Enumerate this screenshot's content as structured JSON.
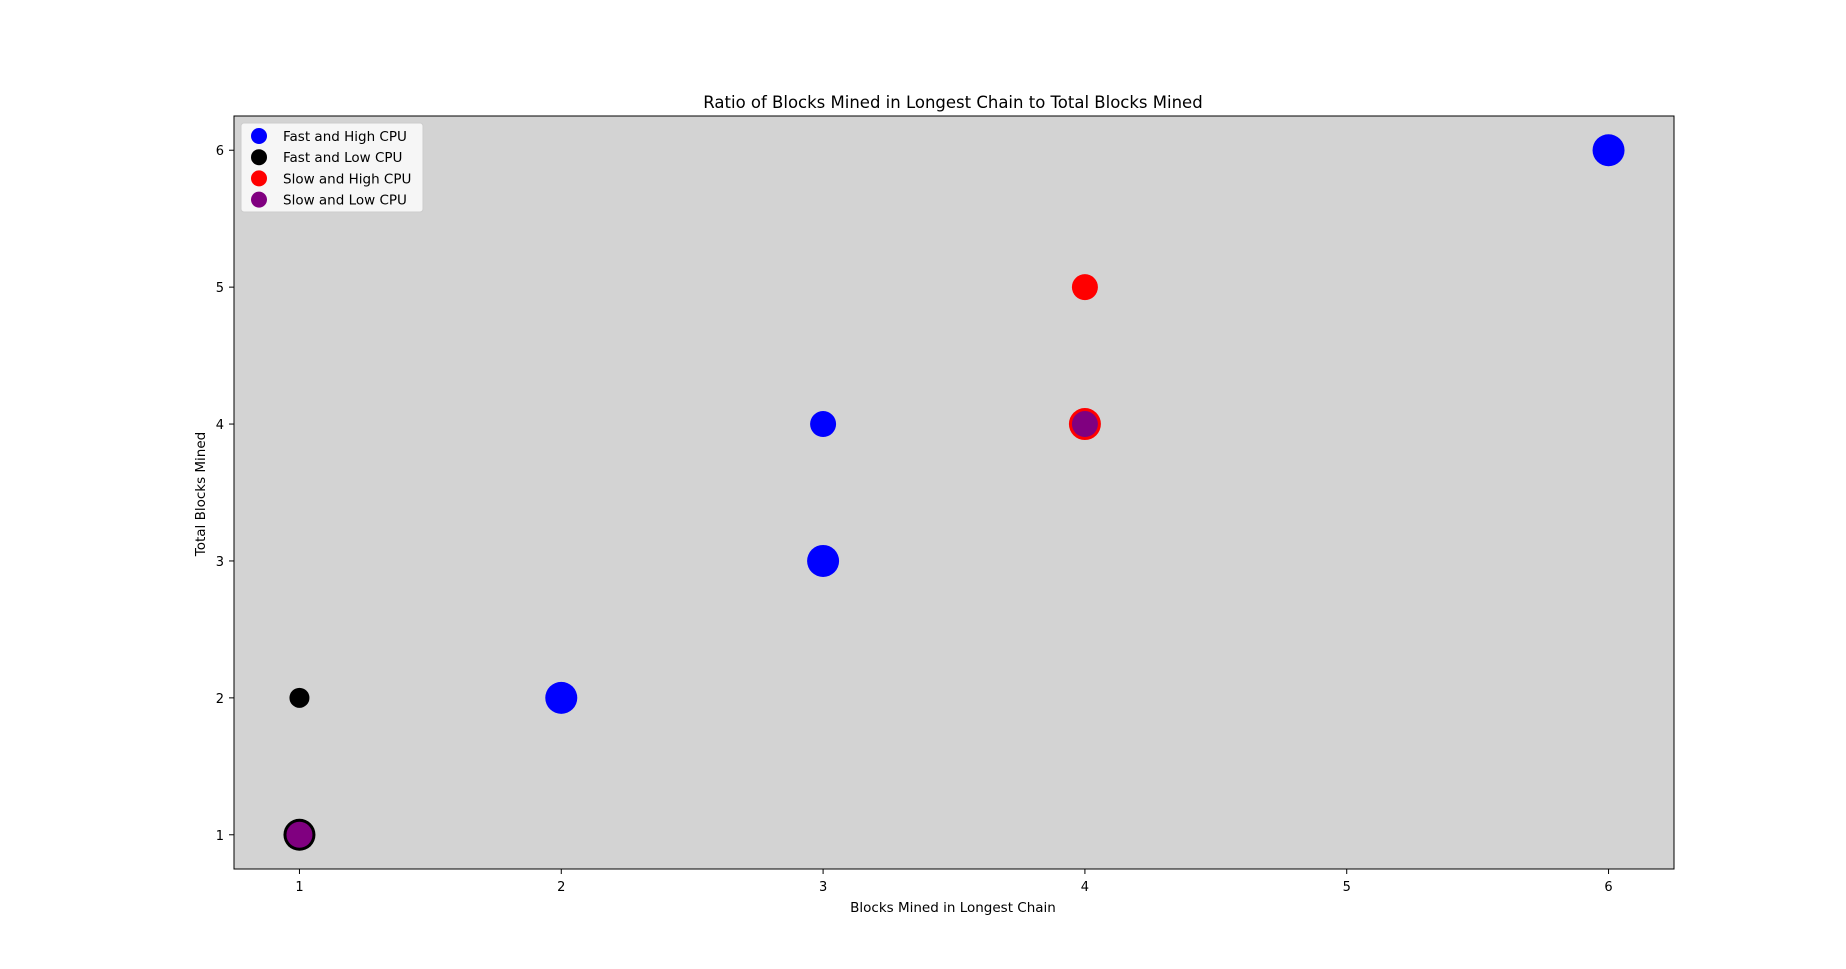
{
  "chart_data": {
    "type": "scatter",
    "title": "Ratio of Blocks Mined in Longest Chain to Total Blocks Mined",
    "xlabel": "Blocks Mined in Longest Chain",
    "ylabel": "Total Blocks Mined",
    "xlim": [
      0.75,
      6.25
    ],
    "ylim": [
      0.75,
      6.25
    ],
    "x_ticks": [
      1,
      2,
      3,
      4,
      5,
      6
    ],
    "y_ticks": [
      1,
      2,
      3,
      4,
      5,
      6
    ],
    "grid": false,
    "legend_position": "upper-left",
    "plot_background": "#d3d3d3",
    "series": [
      {
        "name": "Fast and High CPU",
        "color": "#0000ff",
        "points": [
          {
            "x": 2,
            "y": 2,
            "size": "large"
          },
          {
            "x": 3,
            "y": 3,
            "size": "large"
          },
          {
            "x": 3,
            "y": 4,
            "size": "medium"
          },
          {
            "x": 6,
            "y": 6,
            "size": "large"
          }
        ]
      },
      {
        "name": "Fast and Low CPU",
        "color": "#000000",
        "points": [
          {
            "x": 1,
            "y": 1,
            "size": "large"
          },
          {
            "x": 1,
            "y": 2,
            "size": "small"
          }
        ]
      },
      {
        "name": "Slow and High CPU",
        "color": "#ff0000",
        "points": [
          {
            "x": 4,
            "y": 4,
            "size": "large"
          },
          {
            "x": 4,
            "y": 5,
            "size": "medium"
          }
        ]
      },
      {
        "name": "Slow and Low CPU",
        "color": "#800080",
        "points": [
          {
            "x": 1,
            "y": 1,
            "size": "medium"
          },
          {
            "x": 4,
            "y": 4,
            "size": "medium"
          }
        ]
      }
    ]
  }
}
